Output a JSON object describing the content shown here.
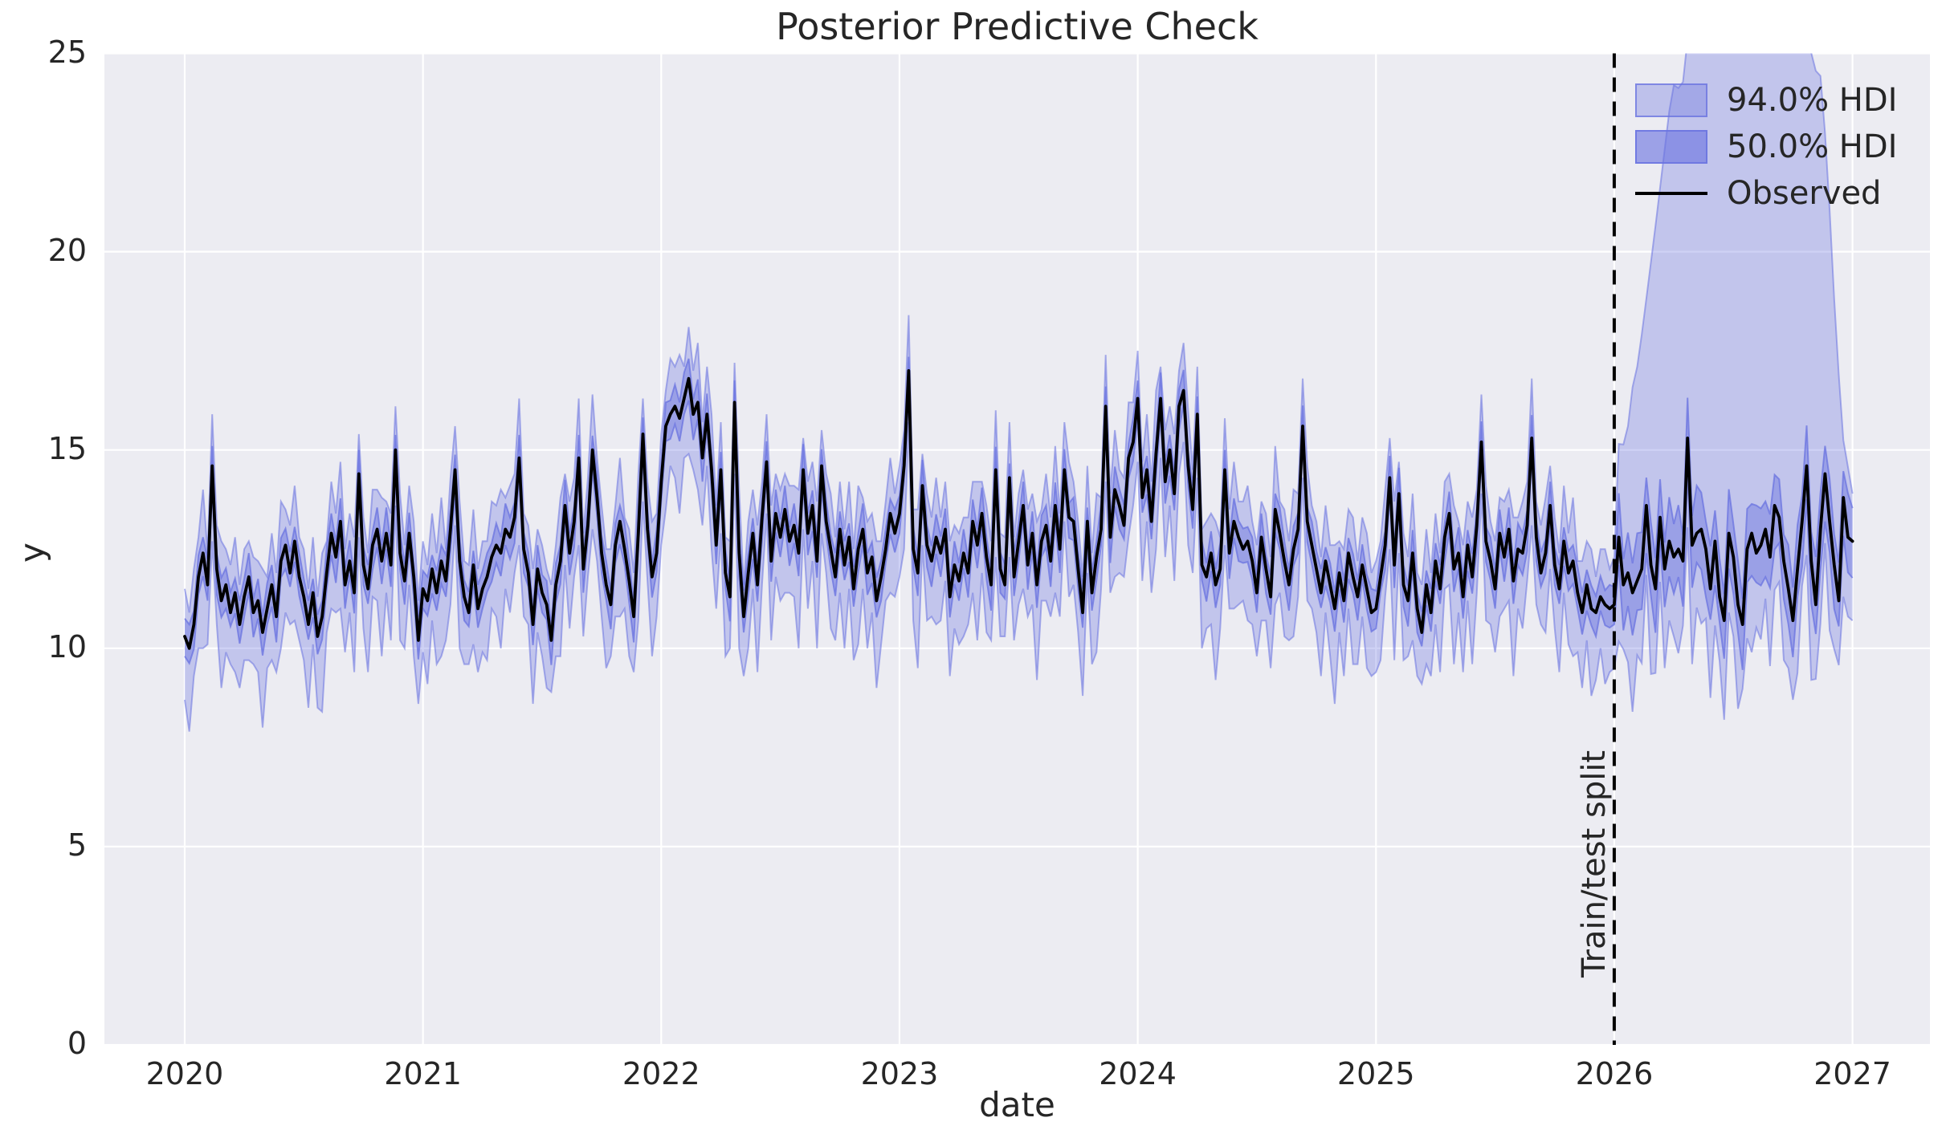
{
  "chart_data": {
    "type": "line",
    "title": "Posterior Predictive Check",
    "xlabel": "date",
    "ylabel": "y",
    "xlim": [
      2019.663,
      2027.325
    ],
    "ylim": [
      0,
      25
    ],
    "x_ticks": [
      2020,
      2021,
      2022,
      2023,
      2024,
      2025,
      2026,
      2027
    ],
    "y_ticks": [
      0,
      5,
      10,
      15,
      20,
      25
    ],
    "grid": true,
    "legend_position": "upper right",
    "legend": [
      {
        "label": "94.0% HDI",
        "type": "band"
      },
      {
        "label": "50.0% HDI",
        "type": "band"
      },
      {
        "label": "Observed",
        "type": "line"
      }
    ],
    "split_line": {
      "x": 2026.0,
      "label": "Train/test split",
      "style": "dashed",
      "color": "#000000"
    },
    "colors": {
      "band_base": "#6A73E0",
      "band94_fill": "rgba(106,115,224,0.32)",
      "band50_fill": "rgba(106,115,224,0.45)",
      "band_edge": "rgba(106,115,224,0.55)",
      "band_edge_strong": "rgba(106,115,224,0.75)",
      "observed": "#000000",
      "plot_bg": "#ececf2",
      "grid": "#ffffff",
      "text": "#262626"
    },
    "series": {
      "x_start": 2020.0,
      "x_step_years": 0.01923076923,
      "x_end": 2027.0,
      "observed": [
        10.3,
        10.0,
        10.6,
        11.8,
        12.4,
        11.6,
        14.6,
        12.0,
        11.2,
        11.6,
        10.9,
        11.4,
        10.6,
        11.3,
        11.8,
        10.9,
        11.2,
        10.4,
        11.0,
        11.6,
        10.8,
        12.2,
        12.6,
        11.9,
        12.7,
        11.8,
        11.3,
        10.6,
        11.4,
        10.3,
        10.8,
        11.9,
        12.9,
        12.3,
        13.2,
        11.6,
        12.2,
        11.4,
        14.4,
        12.1,
        11.5,
        12.6,
        13.0,
        12.2,
        12.9,
        12.1,
        15.0,
        12.4,
        11.7,
        12.9,
        11.8,
        10.2,
        11.5,
        11.2,
        12.0,
        11.4,
        12.2,
        11.7,
        13.0,
        14.5,
        12.2,
        11.3,
        10.9,
        12.1,
        11.0,
        11.5,
        11.8,
        12.3,
        12.6,
        12.4,
        13.0,
        12.8,
        13.3,
        14.8,
        12.5,
        11.9,
        10.6,
        12.0,
        11.4,
        11.1,
        10.2,
        11.6,
        12.2,
        13.6,
        12.4,
        13.2,
        14.8,
        12.0,
        13.1,
        15.0,
        13.8,
        12.4,
        11.6,
        11.1,
        12.6,
        13.2,
        12.5,
        11.7,
        10.8,
        12.9,
        15.4,
        13.0,
        11.8,
        12.4,
        14.2,
        15.6,
        15.9,
        16.1,
        15.8,
        16.3,
        16.8,
        15.9,
        16.2,
        14.8,
        15.9,
        14.5,
        12.6,
        14.5,
        11.9,
        11.3,
        16.2,
        12.4,
        10.8,
        11.9,
        12.9,
        11.6,
        13.3,
        14.7,
        12.2,
        13.4,
        12.8,
        13.5,
        12.7,
        13.1,
        12.4,
        14.5,
        12.9,
        13.6,
        12.2,
        14.6,
        13.2,
        12.5,
        11.8,
        13.0,
        12.1,
        12.8,
        11.5,
        12.5,
        13.0,
        11.9,
        12.3,
        11.2,
        11.8,
        12.5,
        13.4,
        12.9,
        13.4,
        14.6,
        17.0,
        12.5,
        11.9,
        14.1,
        12.6,
        12.2,
        12.8,
        12.4,
        13.0,
        11.3,
        12.1,
        11.7,
        12.4,
        11.9,
        13.2,
        12.6,
        13.4,
        12.3,
        11.6,
        14.5,
        12.0,
        11.6,
        14.3,
        11.8,
        12.7,
        13.6,
        12.1,
        12.9,
        11.6,
        12.7,
        13.1,
        12.2,
        13.6,
        12.5,
        14.5,
        13.3,
        13.2,
        12.0,
        10.9,
        13.2,
        11.4,
        12.3,
        13.0,
        16.1,
        12.8,
        14.0,
        13.6,
        13.1,
        14.8,
        15.2,
        16.3,
        13.8,
        14.5,
        13.2,
        14.9,
        16.3,
        14.2,
        15.0,
        13.9,
        16.1,
        16.5,
        14.6,
        13.5,
        15.9,
        12.1,
        11.8,
        12.4,
        11.6,
        12.0,
        14.5,
        12.4,
        13.2,
        12.8,
        12.5,
        12.7,
        12.2,
        11.4,
        12.8,
        12.0,
        11.3,
        13.5,
        12.9,
        12.2,
        11.6,
        12.5,
        13.0,
        15.6,
        13.2,
        12.6,
        12.0,
        11.4,
        12.2,
        11.6,
        11.0,
        11.9,
        11.2,
        12.4,
        11.8,
        11.3,
        12.1,
        11.5,
        10.9,
        11.0,
        11.8,
        12.6,
        14.3,
        12.1,
        13.9,
        11.6,
        11.2,
        12.4,
        11.0,
        10.4,
        11.6,
        10.9,
        12.2,
        11.5,
        12.8,
        13.4,
        12.0,
        12.4,
        11.3,
        12.6,
        11.8,
        13.1,
        15.2,
        12.7,
        12.2,
        11.5,
        12.9,
        12.3,
        13.0,
        11.7,
        12.5,
        12.4,
        13.1,
        15.3,
        12.8,
        11.9,
        12.4,
        13.6,
        12.1,
        11.5,
        12.7,
        11.9,
        12.2,
        11.4,
        10.9,
        11.6,
        11.0,
        10.9,
        11.3,
        11.1,
        11.0,
        11.1,
        12.8,
        11.6,
        11.9,
        11.4,
        11.7,
        12.0,
        13.6,
        12.1,
        11.5,
        13.3,
        12.0,
        12.7,
        12.3,
        12.5,
        12.2,
        15.3,
        12.6,
        12.9,
        13.0,
        12.5,
        11.5,
        12.7,
        11.3,
        10.7,
        12.9,
        12.3,
        11.1,
        10.6,
        12.5,
        12.9,
        12.4,
        12.6,
        13.0,
        12.3,
        13.6,
        13.3,
        12.2,
        11.5,
        10.7,
        12.0,
        13.2,
        14.6,
        12.2,
        11.1,
        13.0,
        14.4,
        13.2,
        12.1,
        11.2,
        13.8,
        12.8,
        12.7
      ],
      "hdi94": {
        "upper_offsets": [
          1.2,
          0.9,
          1.4,
          1.0,
          1.6,
          0.8,
          1.3,
          1.1,
          1.5,
          0.9,
          1.2,
          1.4,
          1.0
        ],
        "lower_offsets": [
          1.6,
          2.1,
          1.3,
          1.8,
          2.4,
          1.5,
          1.9,
          1.4,
          2.2,
          1.7,
          1.3,
          2.0,
          1.6
        ]
      },
      "hdi50": {
        "upper_offsets": [
          0.45,
          0.6,
          0.35,
          0.55,
          0.4,
          0.65,
          0.5,
          0.38,
          0.58,
          0.42,
          0.52,
          0.36,
          0.6
        ],
        "lower_offsets": [
          0.5,
          0.38,
          0.62,
          0.45,
          0.58,
          0.4,
          0.55,
          0.65,
          0.42,
          0.6,
          0.35,
          0.52,
          0.48
        ]
      },
      "forecast": {
        "start_x": 2026.0,
        "hdi50_offset_scale": 1.85,
        "hdi94_lower_offset_scale": 1.25,
        "hdi94_upper_envelope": [
          [
            2026.0,
            14.0
          ],
          [
            2026.02,
            15.2
          ],
          [
            2026.05,
            15.1
          ],
          [
            2026.07,
            16.4
          ],
          [
            2026.1,
            17.2
          ],
          [
            2026.13,
            18.6
          ],
          [
            2026.17,
            20.5
          ],
          [
            2026.21,
            22.5
          ],
          [
            2026.24,
            24.0
          ],
          [
            2026.26,
            24.4
          ],
          [
            2026.28,
            23.8
          ],
          [
            2026.31,
            25.5
          ],
          [
            2026.38,
            27.0
          ],
          [
            2026.5,
            27.6
          ],
          [
            2026.65,
            27.4
          ],
          [
            2026.78,
            26.5
          ],
          [
            2026.84,
            24.6
          ],
          [
            2026.87,
            24.4
          ],
          [
            2026.9,
            21.5
          ],
          [
            2026.93,
            18.0
          ],
          [
            2026.96,
            15.3
          ],
          [
            2027.0,
            13.9
          ]
        ]
      }
    }
  }
}
